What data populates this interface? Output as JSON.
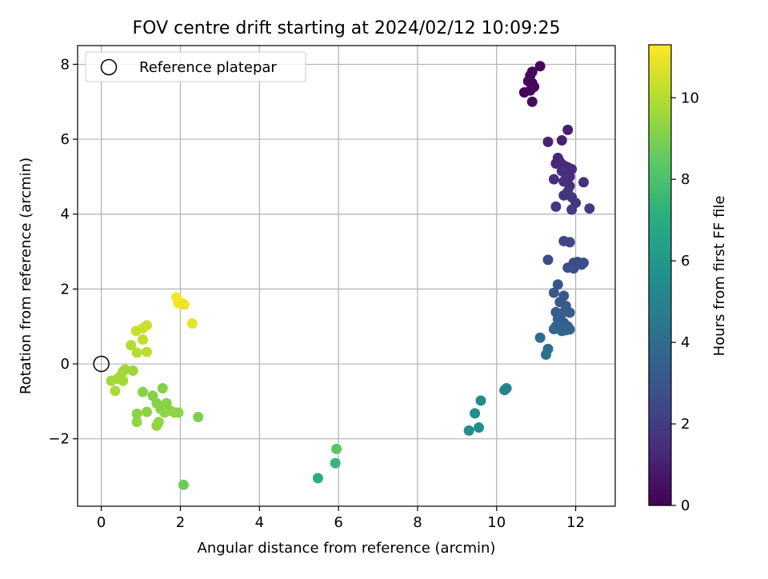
{
  "chart_data": {
    "type": "scatter",
    "title": "FOV centre drift starting at 2024/02/12 10:09:25",
    "xlabel": "Angular distance from reference (arcmin)",
    "ylabel": "Rotation from reference (arcmin)",
    "xlim": [
      -0.6,
      13.0
    ],
    "ylim": [
      -3.8,
      8.5
    ],
    "xticks": [
      0,
      2,
      4,
      6,
      8,
      10,
      12
    ],
    "yticks": [
      -2,
      0,
      2,
      4,
      6,
      8
    ],
    "ytick_labels": [
      "−2",
      "0",
      "2",
      "4",
      "6",
      "8"
    ],
    "grid": true,
    "legend": {
      "position": "top-left",
      "entries": [
        "Reference platepar"
      ]
    },
    "reference_point": {
      "x": 0,
      "y": 0
    },
    "colorbar": {
      "label": "Hours from first FF file",
      "range": [
        0,
        11.3
      ],
      "ticks": [
        0,
        2,
        4,
        6,
        8,
        10
      ],
      "colormap": "viridis"
    },
    "points": [
      {
        "x": 10.7,
        "y": 7.25,
        "c": 0.1
      },
      {
        "x": 10.85,
        "y": 7.7,
        "c": 0.2
      },
      {
        "x": 10.9,
        "y": 7.5,
        "c": 0.2
      },
      {
        "x": 10.85,
        "y": 7.3,
        "c": 0.25
      },
      {
        "x": 11.1,
        "y": 7.95,
        "c": 0.1
      },
      {
        "x": 10.95,
        "y": 7.4,
        "c": 0.3
      },
      {
        "x": 10.9,
        "y": 7.8,
        "c": 0.2
      },
      {
        "x": 10.8,
        "y": 7.55,
        "c": 0.3
      },
      {
        "x": 10.9,
        "y": 7.0,
        "c": 0.35
      },
      {
        "x": 11.3,
        "y": 5.93,
        "c": 1.1
      },
      {
        "x": 11.8,
        "y": 6.25,
        "c": 1.0
      },
      {
        "x": 11.65,
        "y": 5.97,
        "c": 1.1
      },
      {
        "x": 11.5,
        "y": 5.35,
        "c": 1.3
      },
      {
        "x": 11.55,
        "y": 5.5,
        "c": 1.2
      },
      {
        "x": 11.7,
        "y": 5.3,
        "c": 1.3
      },
      {
        "x": 11.75,
        "y": 5.1,
        "c": 1.4
      },
      {
        "x": 11.8,
        "y": 5.25,
        "c": 1.3
      },
      {
        "x": 11.85,
        "y": 5.0,
        "c": 1.4
      },
      {
        "x": 11.9,
        "y": 5.2,
        "c": 1.4
      },
      {
        "x": 11.65,
        "y": 5.15,
        "c": 1.5
      },
      {
        "x": 11.75,
        "y": 4.95,
        "c": 1.5
      },
      {
        "x": 11.45,
        "y": 4.93,
        "c": 1.5
      },
      {
        "x": 11.7,
        "y": 4.87,
        "c": 1.6
      },
      {
        "x": 11.85,
        "y": 4.75,
        "c": 1.6
      },
      {
        "x": 11.8,
        "y": 4.6,
        "c": 1.7
      },
      {
        "x": 11.7,
        "y": 4.5,
        "c": 1.7
      },
      {
        "x": 11.9,
        "y": 4.45,
        "c": 1.8
      },
      {
        "x": 12.0,
        "y": 4.3,
        "c": 1.8
      },
      {
        "x": 11.9,
        "y": 4.12,
        "c": 1.9
      },
      {
        "x": 11.5,
        "y": 4.2,
        "c": 1.8
      },
      {
        "x": 12.2,
        "y": 4.85,
        "c": 1.6
      },
      {
        "x": 12.35,
        "y": 4.15,
        "c": 1.9
      },
      {
        "x": 11.6,
        "y": 5.4,
        "c": 1.3
      },
      {
        "x": 11.7,
        "y": 3.28,
        "c": 2.4
      },
      {
        "x": 11.85,
        "y": 3.25,
        "c": 2.4
      },
      {
        "x": 11.3,
        "y": 2.78,
        "c": 2.6
      },
      {
        "x": 11.8,
        "y": 2.57,
        "c": 2.7
      },
      {
        "x": 11.95,
        "y": 2.7,
        "c": 2.6
      },
      {
        "x": 12.05,
        "y": 2.72,
        "c": 2.6
      },
      {
        "x": 12.15,
        "y": 2.65,
        "c": 2.7
      },
      {
        "x": 12.2,
        "y": 2.7,
        "c": 2.7
      },
      {
        "x": 11.95,
        "y": 2.55,
        "c": 2.8
      },
      {
        "x": 11.55,
        "y": 2.12,
        "c": 3.0
      },
      {
        "x": 11.45,
        "y": 1.9,
        "c": 3.1
      },
      {
        "x": 11.7,
        "y": 1.82,
        "c": 3.1
      },
      {
        "x": 11.6,
        "y": 1.65,
        "c": 3.2
      },
      {
        "x": 11.75,
        "y": 1.55,
        "c": 3.3
      },
      {
        "x": 11.5,
        "y": 1.38,
        "c": 3.3
      },
      {
        "x": 11.65,
        "y": 1.35,
        "c": 3.3
      },
      {
        "x": 11.85,
        "y": 1.37,
        "c": 3.3
      },
      {
        "x": 11.55,
        "y": 1.2,
        "c": 3.4
      },
      {
        "x": 11.7,
        "y": 1.1,
        "c": 3.5
      },
      {
        "x": 11.5,
        "y": 1.0,
        "c": 3.6
      },
      {
        "x": 11.6,
        "y": 0.95,
        "c": 3.6
      },
      {
        "x": 11.75,
        "y": 0.9,
        "c": 3.7
      },
      {
        "x": 11.85,
        "y": 0.92,
        "c": 3.7
      },
      {
        "x": 11.65,
        "y": 0.88,
        "c": 3.7
      },
      {
        "x": 11.8,
        "y": 1.0,
        "c": 3.6
      },
      {
        "x": 11.45,
        "y": 0.93,
        "c": 3.7
      },
      {
        "x": 11.1,
        "y": 0.7,
        "c": 3.9
      },
      {
        "x": 11.3,
        "y": 0.4,
        "c": 4.1
      },
      {
        "x": 11.25,
        "y": 0.25,
        "c": 4.2
      },
      {
        "x": 10.2,
        "y": -0.7,
        "c": 5.0
      },
      {
        "x": 10.25,
        "y": -0.65,
        "c": 5.0
      },
      {
        "x": 9.6,
        "y": -0.98,
        "c": 5.3
      },
      {
        "x": 9.45,
        "y": -1.32,
        "c": 5.5
      },
      {
        "x": 9.55,
        "y": -1.7,
        "c": 5.6
      },
      {
        "x": 9.3,
        "y": -1.78,
        "c": 5.6
      },
      {
        "x": 5.48,
        "y": -3.05,
        "c": 7.1
      },
      {
        "x": 5.92,
        "y": -2.65,
        "c": 7.5
      },
      {
        "x": 5.95,
        "y": -2.27,
        "c": 8.3
      },
      {
        "x": 2.08,
        "y": -3.23,
        "c": 8.7
      },
      {
        "x": 1.55,
        "y": -0.65,
        "c": 9.1
      },
      {
        "x": 1.3,
        "y": -0.85,
        "c": 9.1
      },
      {
        "x": 1.05,
        "y": -0.75,
        "c": 9.2
      },
      {
        "x": 1.4,
        "y": -1.05,
        "c": 9.2
      },
      {
        "x": 1.65,
        "y": -1.05,
        "c": 9.2
      },
      {
        "x": 1.5,
        "y": -1.2,
        "c": 9.2
      },
      {
        "x": 1.75,
        "y": -1.25,
        "c": 9.2
      },
      {
        "x": 1.85,
        "y": -1.3,
        "c": 9.3
      },
      {
        "x": 1.95,
        "y": -1.3,
        "c": 9.3
      },
      {
        "x": 1.6,
        "y": -1.3,
        "c": 9.3
      },
      {
        "x": 1.15,
        "y": -1.28,
        "c": 9.3
      },
      {
        "x": 0.9,
        "y": -1.33,
        "c": 9.3
      },
      {
        "x": 0.9,
        "y": -1.55,
        "c": 9.4
      },
      {
        "x": 1.45,
        "y": -1.55,
        "c": 9.4
      },
      {
        "x": 1.4,
        "y": -1.65,
        "c": 9.4
      },
      {
        "x": 2.45,
        "y": -1.42,
        "c": 9.0
      },
      {
        "x": 0.55,
        "y": -0.2,
        "c": 9.6
      },
      {
        "x": 0.6,
        "y": -0.15,
        "c": 9.6
      },
      {
        "x": 0.8,
        "y": -0.18,
        "c": 9.6
      },
      {
        "x": 0.5,
        "y": -0.3,
        "c": 9.7
      },
      {
        "x": 0.25,
        "y": -0.45,
        "c": 9.7
      },
      {
        "x": 0.4,
        "y": -0.4,
        "c": 9.7
      },
      {
        "x": 0.55,
        "y": -0.45,
        "c": 9.7
      },
      {
        "x": 0.35,
        "y": -0.72,
        "c": 9.8
      },
      {
        "x": 0.75,
        "y": 0.5,
        "c": 10.0
      },
      {
        "x": 0.9,
        "y": 0.3,
        "c": 10.1
      },
      {
        "x": 1.15,
        "y": 0.32,
        "c": 10.1
      },
      {
        "x": 1.05,
        "y": 0.65,
        "c": 10.2
      },
      {
        "x": 0.88,
        "y": 0.88,
        "c": 10.3
      },
      {
        "x": 1.05,
        "y": 0.95,
        "c": 10.4
      },
      {
        "x": 1.15,
        "y": 1.03,
        "c": 10.4
      },
      {
        "x": 1.9,
        "y": 1.78,
        "c": 11.2
      },
      {
        "x": 1.95,
        "y": 1.62,
        "c": 11.1
      },
      {
        "x": 2.05,
        "y": 1.62,
        "c": 11.1
      },
      {
        "x": 2.1,
        "y": 1.58,
        "c": 11.0
      },
      {
        "x": 2.3,
        "y": 1.08,
        "c": 10.9
      }
    ]
  }
}
